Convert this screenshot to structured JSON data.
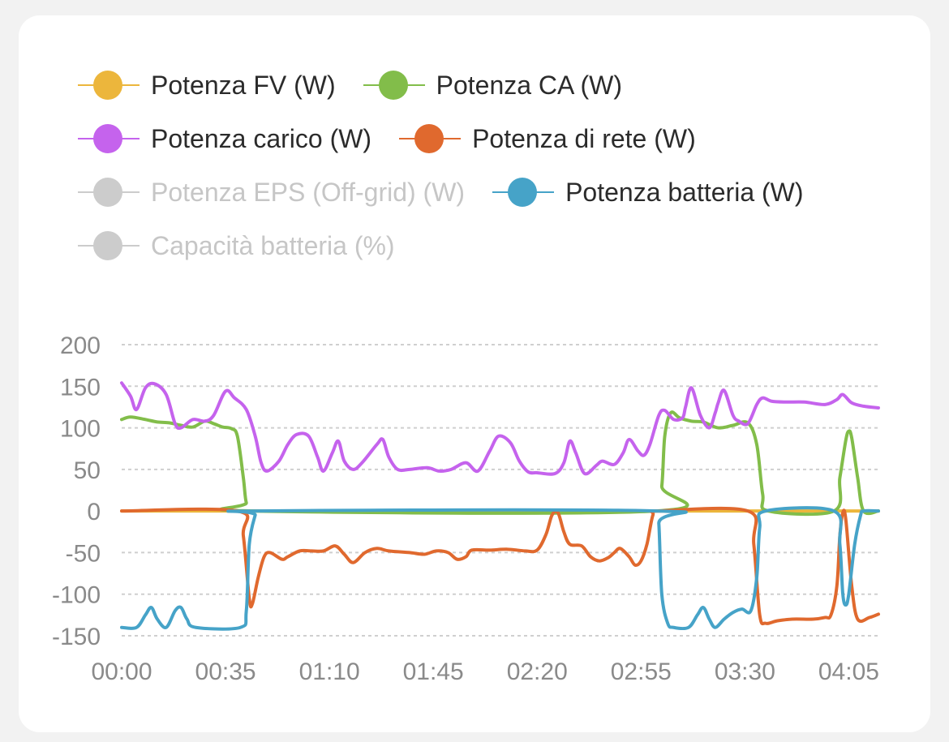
{
  "legend": [
    {
      "label": "Potenza FV (W)",
      "color": "#ecb63c",
      "enabled": true
    },
    {
      "label": "Potenza CA (W)",
      "color": "#82bd4a",
      "enabled": true
    },
    {
      "label": "Potenza carico (W)",
      "color": "#c563ed",
      "enabled": true
    },
    {
      "label": "Potenza di rete (W)",
      "color": "#e0692e",
      "enabled": true
    },
    {
      "label": "Potenza EPS (Off-grid) (W)",
      "color": "#cccccc",
      "enabled": false
    },
    {
      "label": "Potenza batteria (W)",
      "color": "#46a3c8",
      "enabled": true
    },
    {
      "label": "Capacità batteria (%)",
      "color": "#cccccc",
      "enabled": false
    }
  ],
  "chart_data": {
    "type": "line",
    "x_tick_labels": [
      "00:00",
      "00:35",
      "01:10",
      "01:45",
      "02:20",
      "02:55",
      "03:30",
      "04:05"
    ],
    "y_tick_labels": [
      "200",
      "150",
      "100",
      "50",
      "0",
      "-50",
      "-100",
      "-150"
    ],
    "ylim": [
      -150,
      200
    ],
    "x_unit": "minutes",
    "xlim": [
      0,
      255
    ],
    "grid": true,
    "legend_position": "top",
    "series": [
      {
        "name": "Potenza FV (W)",
        "color": "#ecb63c",
        "points": [
          [
            0,
            0
          ],
          [
            255,
            0
          ]
        ]
      },
      {
        "name": "Potenza CA (W)",
        "color": "#82bd4a",
        "points": [
          [
            0,
            110
          ],
          [
            3,
            113
          ],
          [
            8,
            110
          ],
          [
            12,
            107
          ],
          [
            16,
            106
          ],
          [
            20,
            103
          ],
          [
            24,
            101
          ],
          [
            28,
            108
          ],
          [
            31,
            105
          ],
          [
            34,
            101
          ],
          [
            37,
            99
          ],
          [
            39,
            90
          ],
          [
            41,
            40
          ],
          [
            42,
            10
          ],
          [
            44,
            0
          ],
          [
            180,
            0
          ],
          [
            182,
            30
          ],
          [
            183,
            90
          ],
          [
            185,
            118
          ],
          [
            188,
            112
          ],
          [
            192,
            108
          ],
          [
            196,
            107
          ],
          [
            201,
            100
          ],
          [
            206,
            103
          ],
          [
            211,
            106
          ],
          [
            214,
            80
          ],
          [
            216,
            20
          ],
          [
            218,
            0
          ],
          [
            240,
            0
          ],
          [
            242,
            40
          ],
          [
            244,
            85
          ],
          [
            245,
            96
          ],
          [
            246,
            88
          ],
          [
            248,
            40
          ],
          [
            250,
            0
          ],
          [
            255,
            0
          ]
        ]
      },
      {
        "name": "Potenza carico (W)",
        "color": "#c563ed",
        "points": [
          [
            0,
            154
          ],
          [
            3,
            138
          ],
          [
            5,
            122
          ],
          [
            8,
            148
          ],
          [
            11,
            153
          ],
          [
            15,
            140
          ],
          [
            18,
            105
          ],
          [
            20,
            100
          ],
          [
            24,
            110
          ],
          [
            28,
            108
          ],
          [
            31,
            115
          ],
          [
            35,
            144
          ],
          [
            38,
            136
          ],
          [
            42,
            122
          ],
          [
            45,
            90
          ],
          [
            47,
            58
          ],
          [
            49,
            48
          ],
          [
            53,
            60
          ],
          [
            56,
            80
          ],
          [
            59,
            92
          ],
          [
            63,
            90
          ],
          [
            66,
            65
          ],
          [
            68,
            48
          ],
          [
            71,
            70
          ],
          [
            73,
            84
          ],
          [
            75,
            60
          ],
          [
            78,
            50
          ],
          [
            81,
            58
          ],
          [
            86,
            80
          ],
          [
            88,
            86
          ],
          [
            90,
            65
          ],
          [
            93,
            50
          ],
          [
            97,
            50
          ],
          [
            103,
            52
          ],
          [
            107,
            48
          ],
          [
            111,
            50
          ],
          [
            116,
            58
          ],
          [
            120,
            48
          ],
          [
            124,
            72
          ],
          [
            127,
            90
          ],
          [
            131,
            82
          ],
          [
            134,
            60
          ],
          [
            137,
            47
          ],
          [
            140,
            46
          ],
          [
            146,
            45
          ],
          [
            149,
            58
          ],
          [
            151,
            84
          ],
          [
            153,
            70
          ],
          [
            156,
            45
          ],
          [
            160,
            55
          ],
          [
            162,
            60
          ],
          [
            166,
            56
          ],
          [
            169,
            70
          ],
          [
            171,
            86
          ],
          [
            174,
            72
          ],
          [
            176,
            67
          ],
          [
            178,
            80
          ],
          [
            181,
            115
          ],
          [
            183,
            121
          ],
          [
            186,
            110
          ],
          [
            189,
            112
          ],
          [
            190,
            125
          ],
          [
            192,
            148
          ],
          [
            195,
            115
          ],
          [
            198,
            100
          ],
          [
            200,
            118
          ],
          [
            201,
            130
          ],
          [
            203,
            145
          ],
          [
            206,
            115
          ],
          [
            208,
            108
          ],
          [
            211,
            105
          ],
          [
            214,
            128
          ],
          [
            216,
            136
          ],
          [
            219,
            132
          ],
          [
            224,
            131
          ],
          [
            230,
            131
          ],
          [
            237,
            128
          ],
          [
            241,
            134
          ],
          [
            243,
            140
          ],
          [
            246,
            130
          ],
          [
            250,
            126
          ],
          [
            255,
            124
          ]
        ]
      },
      {
        "name": "Potenza di rete (W)",
        "color": "#e0692e",
        "points": [
          [
            0,
            0
          ],
          [
            39,
            0
          ],
          [
            41,
            -30
          ],
          [
            43,
            -105
          ],
          [
            44,
            -112
          ],
          [
            46,
            -80
          ],
          [
            48,
            -55
          ],
          [
            50,
            -50
          ],
          [
            54,
            -58
          ],
          [
            56,
            -55
          ],
          [
            60,
            -48
          ],
          [
            64,
            -48
          ],
          [
            68,
            -48
          ],
          [
            72,
            -42
          ],
          [
            75,
            -52
          ],
          [
            78,
            -62
          ],
          [
            82,
            -50
          ],
          [
            86,
            -45
          ],
          [
            90,
            -48
          ],
          [
            97,
            -50
          ],
          [
            102,
            -52
          ],
          [
            106,
            -48
          ],
          [
            110,
            -50
          ],
          [
            113,
            -58
          ],
          [
            116,
            -55
          ],
          [
            118,
            -47
          ],
          [
            124,
            -47
          ],
          [
            130,
            -46
          ],
          [
            136,
            -48
          ],
          [
            140,
            -47
          ],
          [
            143,
            -28
          ],
          [
            145,
            -5
          ],
          [
            147,
            -2
          ],
          [
            149,
            -25
          ],
          [
            151,
            -40
          ],
          [
            155,
            -42
          ],
          [
            158,
            -55
          ],
          [
            161,
            -60
          ],
          [
            164,
            -56
          ],
          [
            166,
            -50
          ],
          [
            168,
            -45
          ],
          [
            171,
            -55
          ],
          [
            173,
            -65
          ],
          [
            175,
            -60
          ],
          [
            177,
            -40
          ],
          [
            179,
            -5
          ],
          [
            181,
            0
          ],
          [
            211,
            0
          ],
          [
            213,
            -40
          ],
          [
            215,
            -125
          ],
          [
            217,
            -135
          ],
          [
            221,
            -132
          ],
          [
            226,
            -130
          ],
          [
            233,
            -130
          ],
          [
            237,
            -128
          ],
          [
            239,
            -125
          ],
          [
            241,
            -90
          ],
          [
            242,
            -30
          ],
          [
            243,
            -2
          ],
          [
            244,
            -10
          ],
          [
            246,
            -90
          ],
          [
            248,
            -130
          ],
          [
            252,
            -128
          ],
          [
            255,
            -124
          ]
        ]
      },
      {
        "name": "Potenza batteria (W)",
        "color": "#46a3c8",
        "points": [
          [
            0,
            -140
          ],
          [
            5,
            -140
          ],
          [
            8,
            -125
          ],
          [
            10,
            -116
          ],
          [
            12,
            -130
          ],
          [
            15,
            -140
          ],
          [
            18,
            -120
          ],
          [
            20,
            -116
          ],
          [
            22,
            -130
          ],
          [
            25,
            -140
          ],
          [
            40,
            -140
          ],
          [
            42,
            -120
          ],
          [
            43,
            -40
          ],
          [
            45,
            -5
          ],
          [
            46,
            0
          ],
          [
            180,
            0
          ],
          [
            181,
            -15
          ],
          [
            182,
            -100
          ],
          [
            184,
            -135
          ],
          [
            186,
            -140
          ],
          [
            191,
            -140
          ],
          [
            194,
            -125
          ],
          [
            196,
            -116
          ],
          [
            198,
            -130
          ],
          [
            200,
            -140
          ],
          [
            203,
            -130
          ],
          [
            206,
            -122
          ],
          [
            209,
            -118
          ],
          [
            212,
            -120
          ],
          [
            214,
            -80
          ],
          [
            215,
            -20
          ],
          [
            217,
            0
          ],
          [
            240,
            0
          ],
          [
            242,
            -40
          ],
          [
            243,
            -100
          ],
          [
            244,
            -113
          ],
          [
            245,
            -100
          ],
          [
            247,
            -40
          ],
          [
            249,
            -5
          ],
          [
            250,
            0
          ],
          [
            255,
            0
          ]
        ]
      }
    ]
  }
}
